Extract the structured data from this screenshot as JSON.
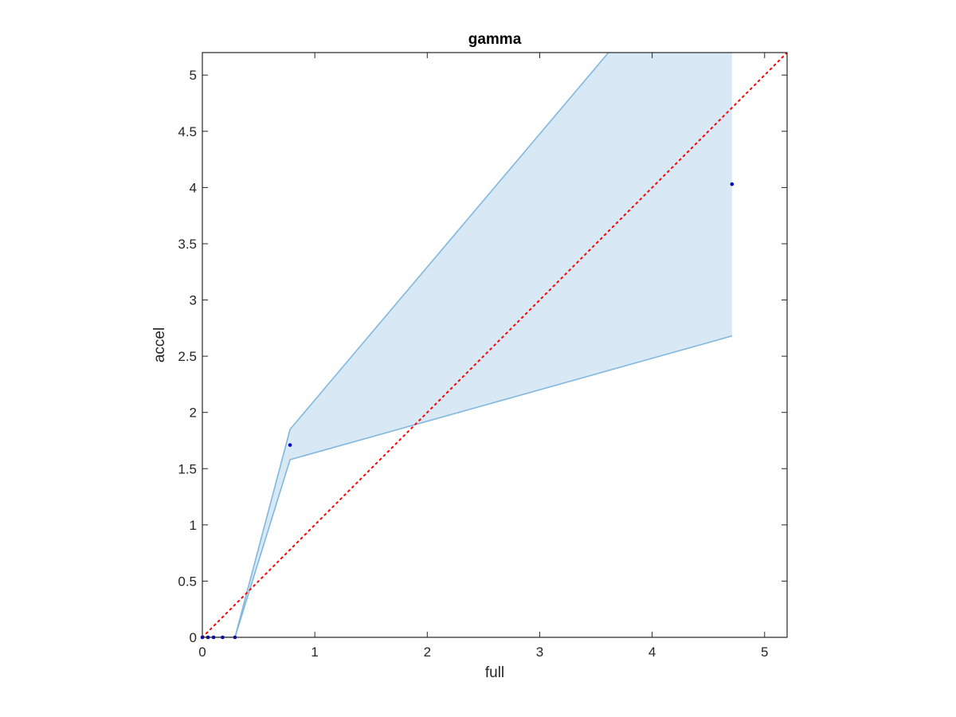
{
  "chart_data": {
    "type": "scatter",
    "title": "gamma",
    "xlabel": "full",
    "ylabel": "accel",
    "xlim": [
      0,
      5.2
    ],
    "ylim": [
      0,
      5.2
    ],
    "xticks": [
      0,
      1,
      2,
      3,
      4,
      5
    ],
    "xtick_labels": [
      "0",
      "1",
      "2",
      "3",
      "4",
      "5"
    ],
    "yticks": [
      0,
      0.5,
      1,
      1.5,
      2,
      2.5,
      3,
      3.5,
      4,
      4.5,
      5
    ],
    "ytick_labels": [
      "0",
      "0.5",
      "1",
      "1.5",
      "2",
      "2.5",
      "3",
      "3.5",
      "4",
      "4.5",
      "5"
    ],
    "grid": false,
    "box": true,
    "series": [
      {
        "type": "scatter",
        "color": "#0000CC",
        "x": [
          0.0,
          0.05,
          0.1,
          0.18,
          0.29,
          0.78,
          4.71
        ],
        "y": [
          0.0,
          0.0,
          0.0,
          0.0,
          0.0,
          1.71,
          4.03
        ]
      }
    ],
    "band": {
      "color": "#80B8DF",
      "fill": "#D8E8F4",
      "x": [
        0.0,
        0.29,
        0.78,
        4.71
      ],
      "lower": [
        0.0,
        0.0,
        1.58,
        2.68
      ],
      "upper": [
        0.0,
        0.0,
        1.85,
        6.5
      ]
    },
    "reference_line": {
      "color": "#FF0000",
      "style": "dotted",
      "x": [
        0,
        5.2
      ],
      "y": [
        0,
        5.2
      ]
    }
  }
}
